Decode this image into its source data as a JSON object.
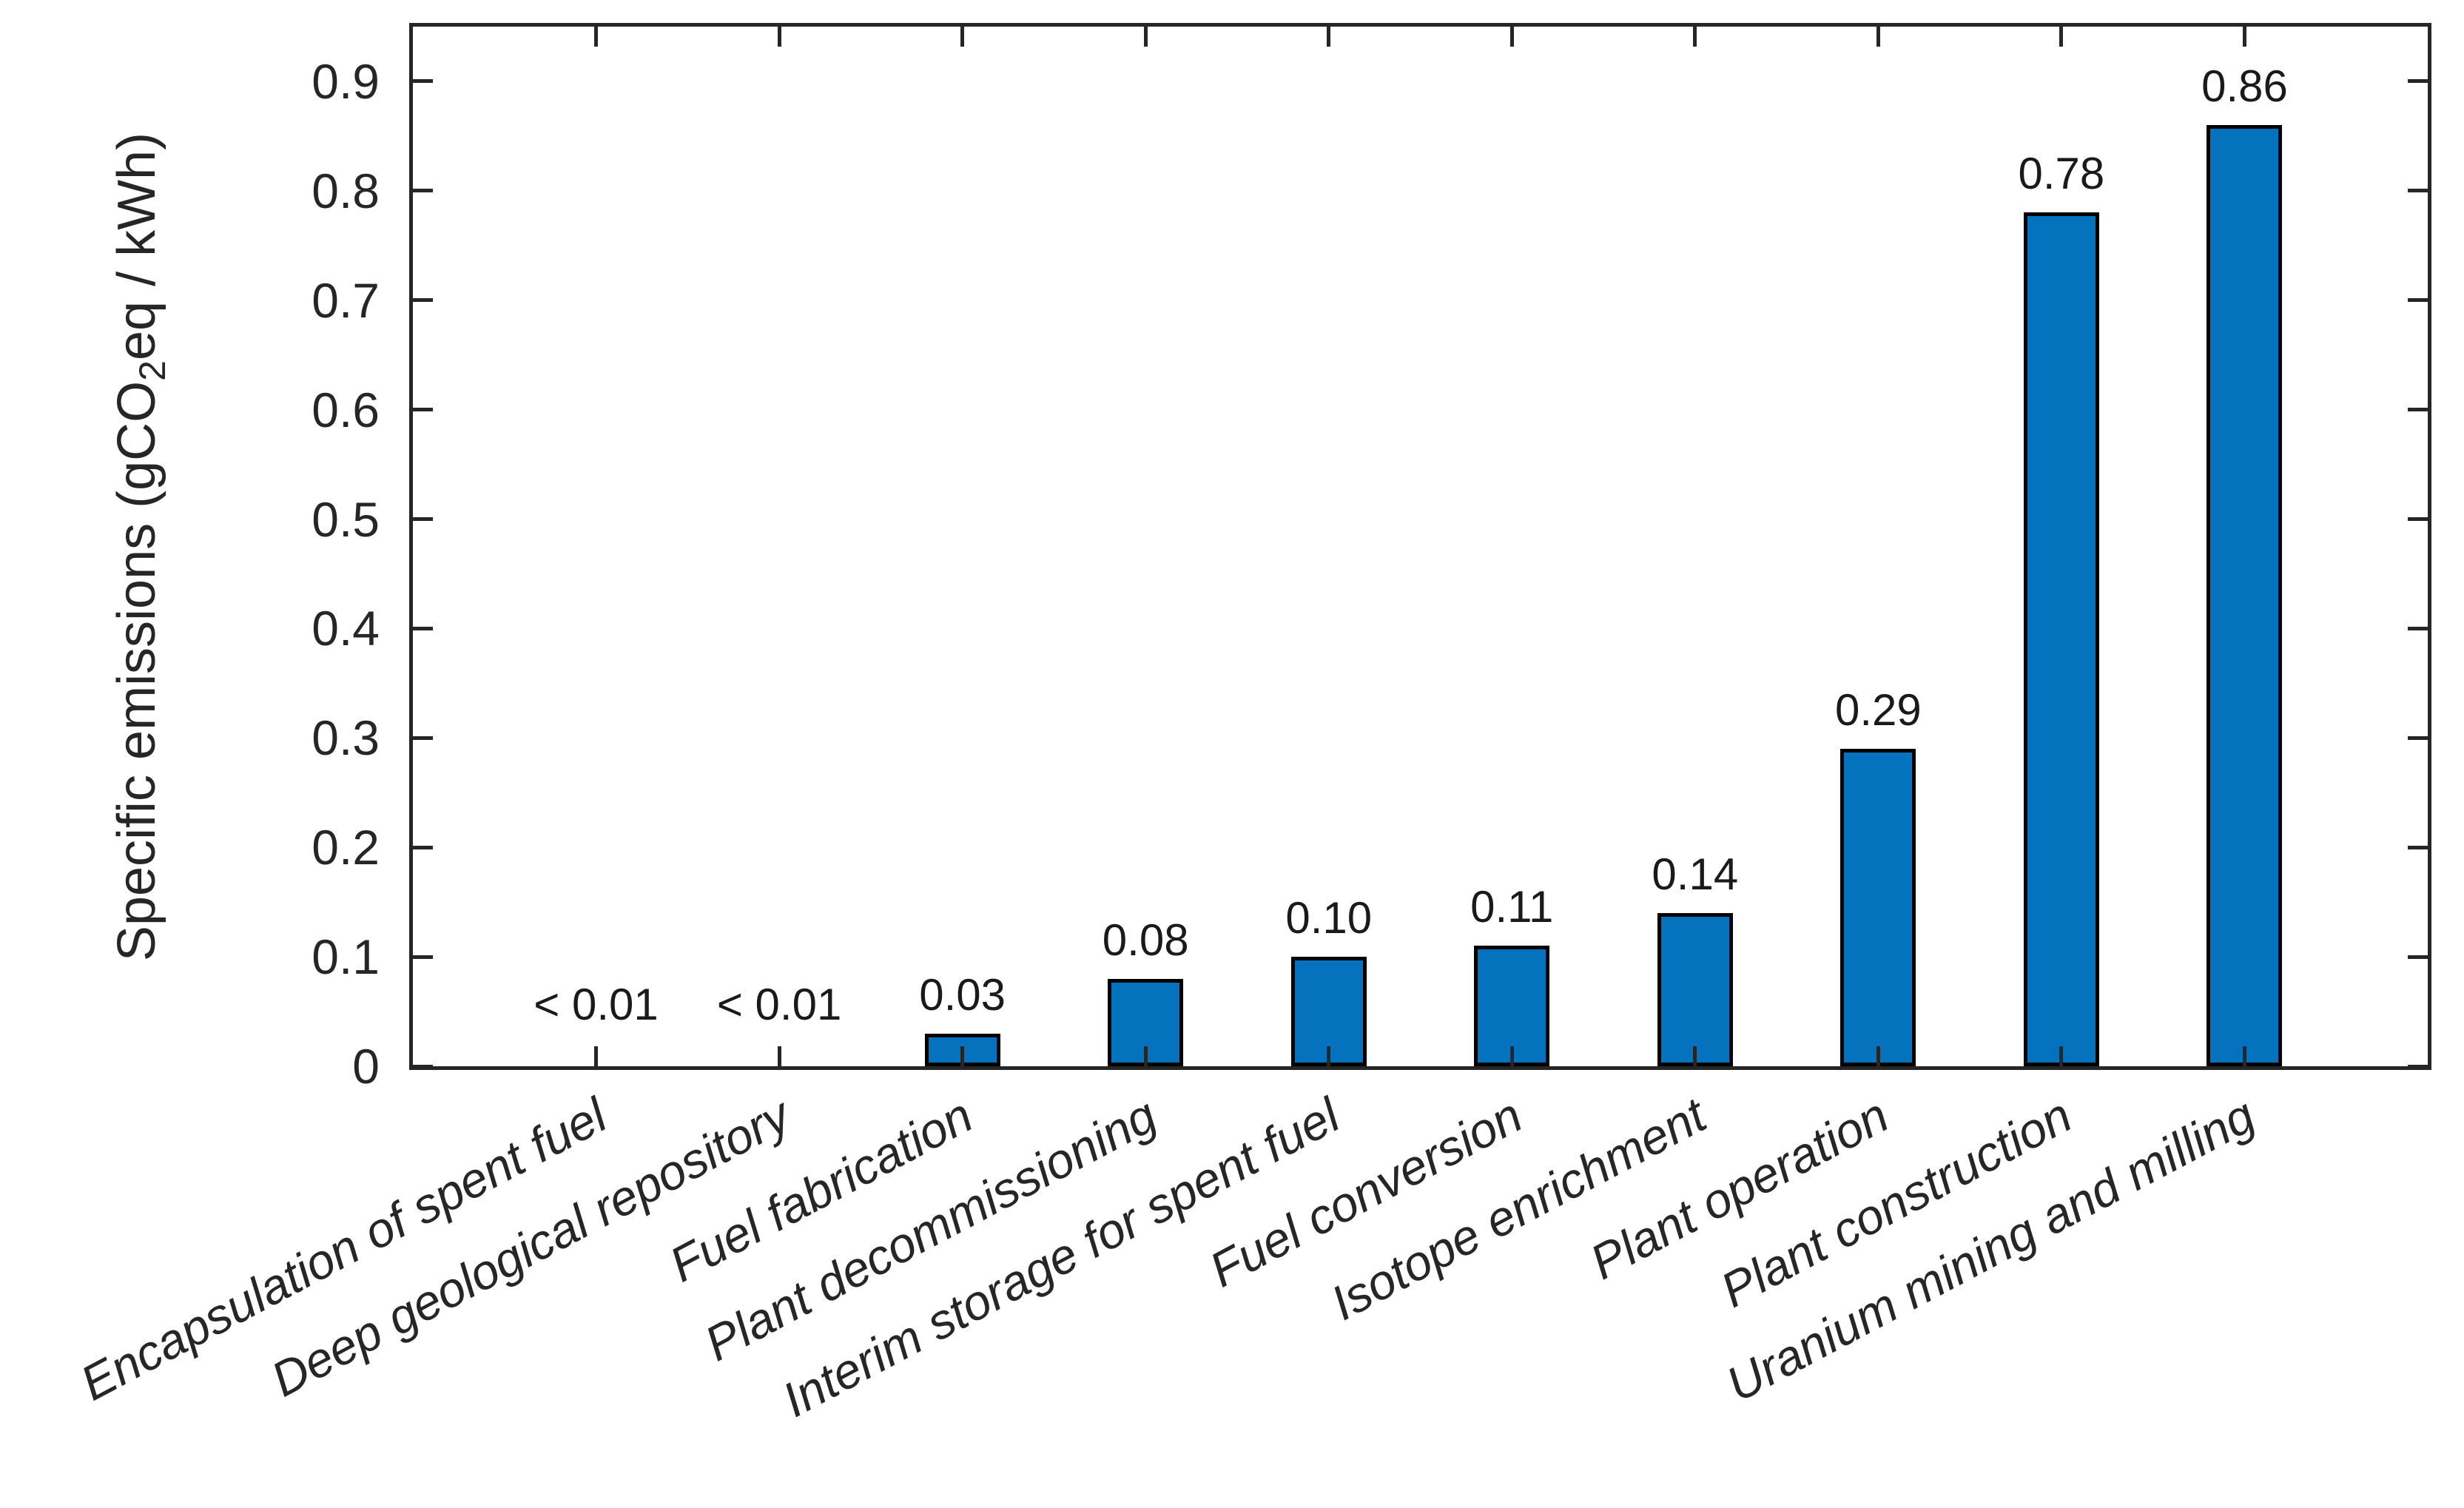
{
  "chart_data": {
    "type": "bar",
    "title": "",
    "ylabel": "Specific emissions (gCO2eq / kWh)",
    "ylabel_parts": {
      "pre": "Specific emissions (gCO",
      "sub": "2",
      "post": "eq / kWh)"
    },
    "xlabel": "",
    "categories": [
      "Encapsulation of spent fuel",
      "Deep geological repository",
      "Fuel fabrication",
      "Plant decommissioning",
      "Interim storage for spent fuel",
      "Fuel conversion",
      "Isotope enrichment",
      "Plant operation",
      "Plant construction",
      "Uranium mining and milling"
    ],
    "values": [
      0.005,
      0.005,
      0.03,
      0.08,
      0.1,
      0.11,
      0.14,
      0.29,
      0.78,
      0.86
    ],
    "bar_labels": [
      "< 0.01",
      "< 0.01",
      "0.03",
      "0.08",
      "0.10",
      "0.11",
      "0.14",
      "0.29",
      "0.78",
      "0.86"
    ],
    "ylim": [
      0,
      0.95
    ],
    "yticks": [
      0,
      0.1,
      0.2,
      0.3,
      0.4,
      0.5,
      0.6,
      0.7,
      0.8,
      0.9
    ],
    "ytick_labels": [
      "0",
      "0.1",
      "0.2",
      "0.3",
      "0.4",
      "0.5",
      "0.6",
      "0.7",
      "0.8",
      "0.9"
    ],
    "grid": "off",
    "legend": "none",
    "bar_color": "#0472BD",
    "bar_edge_color": "#000000",
    "axis_color": "#262626"
  }
}
